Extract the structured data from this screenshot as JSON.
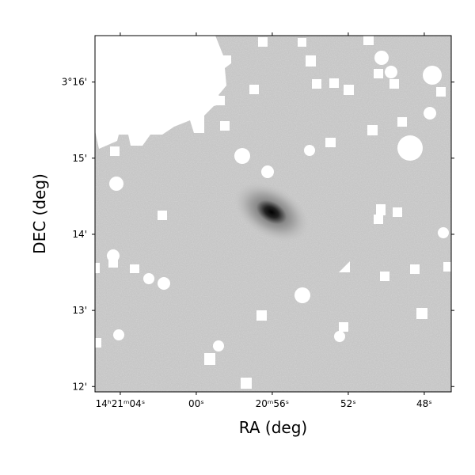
{
  "chart_data": {
    "type": "image",
    "xlabel": "RA (deg)",
    "ylabel": "DEC (deg)",
    "xlim": [
      65.33,
      46.58
    ],
    "xticks": [
      {
        "value": 64,
        "label": "14ʰ21ᵐ04ˢ"
      },
      {
        "value": 60,
        "label": "00ˢ"
      },
      {
        "value": 56,
        "label": "20ᵐ56ˢ"
      },
      {
        "value": 52,
        "label": "52ˢ"
      },
      {
        "value": 48,
        "label": "48ˢ"
      }
    ],
    "ylim": [
      11.93,
      16.61
    ],
    "yticks": [
      {
        "value": 16,
        "label": "3°16'"
      },
      {
        "value": 15,
        "label": "15'"
      },
      {
        "value": 14,
        "label": "14'"
      },
      {
        "value": 13,
        "label": "13'"
      },
      {
        "value": 12,
        "label": "12'"
      }
    ]
  }
}
